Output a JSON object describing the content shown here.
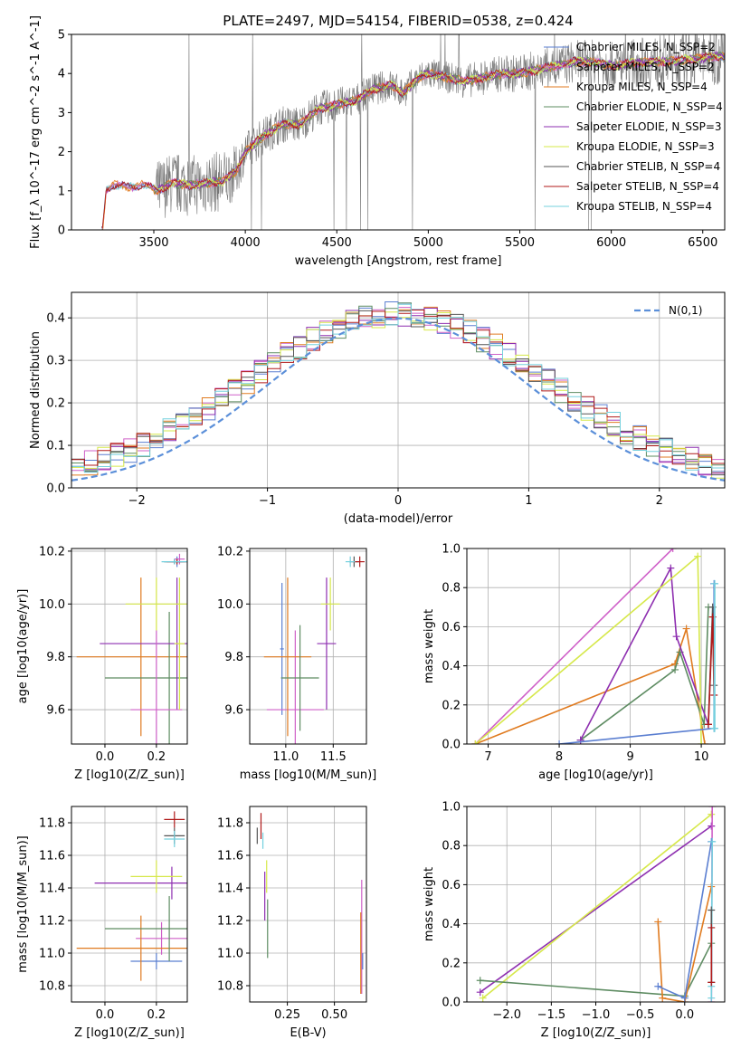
{
  "figure": {
    "title": "PLATE=2497, MJD=54154, FIBERID=0538, z=0.424"
  },
  "colors": {
    "chabrier_miles": "#5b7fd1",
    "salpeter_miles": "#cf60c8",
    "kroupa_miles": "#e07b20",
    "chabrier_elodie": "#5e8c62",
    "salpeter_elodie": "#8e2fb0",
    "kroupa_elodie": "#d6e84a",
    "chabrier_stelib": "#555555",
    "salpeter_stelib": "#b01a1a",
    "kroupa_stelib": "#74d0de",
    "data": "#777777",
    "normal": "#5b8fd9"
  },
  "chart_data": [
    {
      "id": "spectrum",
      "type": "line",
      "title": "PLATE=2497, MJD=54154, FIBERID=0538, z=0.424",
      "xlabel": "wavelength [Angstrom, rest frame]",
      "ylabel": "Flux [f_λ 10^-17 erg cm^-2 s^-1 A^-1]",
      "xlim": [
        3050,
        6620
      ],
      "ylim": [
        0,
        5
      ],
      "xticks": [
        "3500",
        "4000",
        "4500",
        "5000",
        "5500",
        "6000",
        "6500"
      ],
      "yticks": [
        "0",
        "1",
        "2",
        "3",
        "4",
        "5"
      ],
      "grid": false,
      "legend_position": "top-right",
      "legend": [
        {
          "label": "Chabrier MILES, N_SSP=2",
          "color_key": "chabrier_miles"
        },
        {
          "label": "Salpeter MILES, N_SSP=2",
          "color_key": "salpeter_miles"
        },
        {
          "label": "Kroupa MILES, N_SSP=4",
          "color_key": "kroupa_miles"
        },
        {
          "label": "Chabrier ELODIE, N_SSP=4",
          "color_key": "chabrier_elodie"
        },
        {
          "label": "Salpeter ELODIE, N_SSP=3",
          "color_key": "salpeter_elodie"
        },
        {
          "label": "Kroupa ELODIE, N_SSP=3",
          "color_key": "kroupa_elodie"
        },
        {
          "label": "Chabrier STELIB, N_SSP=4",
          "color_key": "chabrier_stelib"
        },
        {
          "label": "Salpeter STELIB, N_SSP=4",
          "color_key": "salpeter_stelib"
        },
        {
          "label": "Kroupa STELIB, N_SSP=4",
          "color_key": "kroupa_stelib"
        }
      ],
      "model_continuum": [
        [
          3220,
          0.0
        ],
        [
          3240,
          1.05
        ],
        [
          3280,
          1.15
        ],
        [
          3350,
          1.1
        ],
        [
          3450,
          1.15
        ],
        [
          3520,
          1.0
        ],
        [
          3600,
          1.2
        ],
        [
          3700,
          1.15
        ],
        [
          3800,
          1.2
        ],
        [
          3880,
          1.25
        ],
        [
          3950,
          1.5
        ],
        [
          4000,
          2.0
        ],
        [
          4100,
          2.4
        ],
        [
          4200,
          2.7
        ],
        [
          4300,
          2.7
        ],
        [
          4400,
          3.1
        ],
        [
          4500,
          3.2
        ],
        [
          4600,
          3.3
        ],
        [
          4700,
          3.6
        ],
        [
          4800,
          3.7
        ],
        [
          4860,
          3.5
        ],
        [
          4950,
          3.9
        ],
        [
          5000,
          4.0
        ],
        [
          5100,
          3.9
        ],
        [
          5200,
          3.8
        ],
        [
          5300,
          3.9
        ],
        [
          5400,
          4.0
        ],
        [
          5500,
          4.0
        ],
        [
          5600,
          4.1
        ],
        [
          5700,
          4.2
        ],
        [
          5800,
          4.3
        ],
        [
          5900,
          4.3
        ],
        [
          6000,
          4.2
        ],
        [
          6100,
          4.25
        ],
        [
          6200,
          4.3
        ],
        [
          6300,
          4.3
        ],
        [
          6400,
          4.35
        ],
        [
          6500,
          4.4
        ],
        [
          6600,
          4.45
        ]
      ],
      "data_noise_amplitude": [
        [
          3220,
          0.05
        ],
        [
          3500,
          0.05
        ],
        [
          3510,
          0.8
        ],
        [
          3900,
          0.8
        ],
        [
          4000,
          0.5
        ],
        [
          5000,
          0.4
        ],
        [
          5500,
          0.5
        ],
        [
          6000,
          0.6
        ],
        [
          6600,
          0.8
        ]
      ]
    },
    {
      "id": "residuals",
      "type": "histogram",
      "xlabel": "(data-model)/error",
      "ylabel": "Normed distribution",
      "xlim": [
        -2.5,
        2.5
      ],
      "ylim": [
        0,
        0.46
      ],
      "xticks": [
        "−2",
        "−1",
        "0",
        "1",
        "2"
      ],
      "yticks": [
        "0.0",
        "0.1",
        "0.2",
        "0.3",
        "0.4"
      ],
      "grid": true,
      "legend_position": "top-right",
      "legend": [
        {
          "label": "N(0,1)",
          "color_key": "normal"
        }
      ],
      "bin_width": 0.1
    },
    {
      "id": "age_vs_z",
      "type": "errorbar",
      "xlabel": "Z [log10(Z/Z_sun)]",
      "ylabel": "age [log10(age/yr)]",
      "xlim": [
        -0.13,
        0.32
      ],
      "ylim": [
        9.47,
        10.21
      ],
      "xticks": [
        "0.0",
        "0.2"
      ],
      "yticks": [
        "9.6",
        "9.8",
        "10.0",
        "10.2"
      ],
      "grid": true,
      "points": [
        {
          "key": "chabrier_miles",
          "x": 0.28,
          "xerr": 0.02,
          "y": 10.16,
          "yerr": 0.02
        },
        {
          "key": "salpeter_miles",
          "x": 0.29,
          "xerr": 0.02,
          "y": 10.17,
          "yerr": 0.02
        },
        {
          "key": "kroupa_miles",
          "x": 0.14,
          "xerr": 0.25,
          "y": 9.8,
          "yerr": 0.3
        },
        {
          "key": "chabrier_elodie",
          "x": 0.25,
          "xerr": 0.25,
          "y": 9.72,
          "yerr": 0.25
        },
        {
          "key": "salpeter_elodie",
          "x": 0.28,
          "xerr": 0.3,
          "y": 9.85,
          "yerr": 0.25
        },
        {
          "key": "kroupa_elodie",
          "x": 0.2,
          "xerr": 0.12,
          "y": 10.0,
          "yerr": 0.1
        },
        {
          "key": "chabrier_stelib",
          "x": 0.27,
          "xerr": 0.04,
          "y": 10.16,
          "yerr": 0.01
        },
        {
          "key": "salpeter_stelib",
          "x": 0.28,
          "xerr": 0.04,
          "y": 10.16,
          "yerr": 0.01
        },
        {
          "key": "kroupa_stelib",
          "x": 0.27,
          "xerr": 0.05,
          "y": 10.16,
          "yerr": 0.01
        },
        {
          "key": "salpeter_miles",
          "x": 0.2,
          "xerr": 0.1,
          "y": 9.6,
          "yerr": 0.3
        },
        {
          "key": "kroupa_elodie",
          "x": 0.29,
          "xerr": 0.02,
          "y": 9.85,
          "yerr": 0.25
        }
      ]
    },
    {
      "id": "age_vs_mass",
      "type": "errorbar",
      "xlabel": "mass [log10(M/M_sun)]",
      "ylabel": "",
      "xlim": [
        10.62,
        11.85
      ],
      "ylim": [
        9.47,
        10.21
      ],
      "xticks": [
        "11.0",
        "11.5"
      ],
      "yticks": [
        "9.6",
        "9.8",
        "10.0",
        "10.2"
      ],
      "grid": true,
      "points": [
        {
          "key": "chabrier_miles",
          "x": 10.96,
          "xerr": 0.02,
          "y": 9.83,
          "yerr": 0.25
        },
        {
          "key": "salpeter_miles",
          "x": 11.1,
          "xerr": 0.3,
          "y": 9.6,
          "yerr": 0.3
        },
        {
          "key": "kroupa_miles",
          "x": 11.02,
          "xerr": 0.25,
          "y": 9.8,
          "yerr": 0.3
        },
        {
          "key": "chabrier_elodie",
          "x": 11.15,
          "xerr": 0.2,
          "y": 9.72,
          "yerr": 0.2
        },
        {
          "key": "salpeter_elodie",
          "x": 11.43,
          "xerr": 0.1,
          "y": 9.85,
          "yerr": 0.25
        },
        {
          "key": "kroupa_elodie",
          "x": 11.47,
          "xerr": 0.1,
          "y": 10.0,
          "yerr": 0.1
        },
        {
          "key": "chabrier_stelib",
          "x": 11.72,
          "xerr": 0.05,
          "y": 10.16,
          "yerr": 0.02
        },
        {
          "key": "salpeter_stelib",
          "x": 11.78,
          "xerr": 0.05,
          "y": 10.16,
          "yerr": 0.02
        },
        {
          "key": "kroupa_stelib",
          "x": 11.68,
          "xerr": 0.05,
          "y": 10.16,
          "yerr": 0.02
        }
      ]
    },
    {
      "id": "weight_vs_age",
      "type": "line",
      "xlabel": "age [log10(age/yr)]",
      "ylabel": "mass weight",
      "xlim": [
        6.7,
        10.33
      ],
      "ylim": [
        0,
        1
      ],
      "xticks": [
        "7",
        "8",
        "9",
        "10"
      ],
      "yticks": [
        "0.0",
        "0.2",
        "0.4",
        "0.6",
        "0.8",
        "1.0"
      ],
      "grid": true,
      "series": [
        {
          "key": "salpeter_miles",
          "x": [
            6.82,
            9.6
          ],
          "y": [
            0.0,
            1.0
          ]
        },
        {
          "key": "kroupa_miles",
          "x": [
            6.82,
            9.63,
            9.79,
            10.05
          ],
          "y": [
            0.0,
            0.41,
            0.59,
            0.0
          ]
        },
        {
          "key": "chabrier_elodie",
          "x": [
            8.3,
            9.63,
            9.7,
            10.04,
            10.1
          ],
          "y": [
            0.02,
            0.38,
            0.47,
            0.1,
            0.7
          ]
        },
        {
          "key": "salpeter_elodie",
          "x": [
            8.3,
            9.57,
            9.65,
            10.1
          ],
          "y": [
            0.02,
            0.9,
            0.55,
            0.1
          ]
        },
        {
          "key": "kroupa_elodie",
          "x": [
            6.82,
            9.95,
            10.0
          ],
          "y": [
            0.0,
            0.96,
            0.0
          ]
        },
        {
          "key": "chabrier_miles",
          "x": [
            8.0,
            10.18,
            10.18
          ],
          "y": [
            0.0,
            0.08,
            0.82
          ]
        },
        {
          "key": "chabrier_stelib",
          "x": [
            10.1,
            10.16,
            10.18
          ],
          "y": [
            0.1,
            0.7,
            0.3
          ]
        },
        {
          "key": "salpeter_stelib",
          "x": [
            10.1,
            10.16,
            10.18
          ],
          "y": [
            0.1,
            0.65,
            0.25
          ]
        },
        {
          "key": "kroupa_stelib",
          "x": [
            10.18,
            10.19,
            10.19
          ],
          "y": [
            0.08,
            0.82,
            0.08
          ]
        }
      ]
    },
    {
      "id": "mass_vs_z",
      "type": "errorbar",
      "xlabel": "Z [log10(Z/Z_sun)]",
      "ylabel": "mass [log10(M/M_sun)]",
      "xlim": [
        -0.13,
        0.32
      ],
      "ylim": [
        10.7,
        11.9
      ],
      "xticks": [
        "0.0",
        "0.2"
      ],
      "yticks": [
        "10.8",
        "11.0",
        "11.2",
        "11.4",
        "11.6",
        "11.8"
      ],
      "grid": true,
      "points": [
        {
          "key": "chabrier_miles",
          "x": 0.2,
          "xerr": 0.1,
          "y": 10.95,
          "yerr": 0.05
        },
        {
          "key": "salpeter_miles",
          "x": 0.22,
          "xerr": 0.1,
          "y": 11.09,
          "yerr": 0.1
        },
        {
          "key": "kroupa_miles",
          "x": 0.14,
          "xerr": 0.25,
          "y": 11.03,
          "yerr": 0.2
        },
        {
          "key": "chabrier_elodie",
          "x": 0.25,
          "xerr": 0.25,
          "y": 11.15,
          "yerr": 0.2
        },
        {
          "key": "salpeter_elodie",
          "x": 0.26,
          "xerr": 0.3,
          "y": 11.43,
          "yerr": 0.1
        },
        {
          "key": "kroupa_elodie",
          "x": 0.2,
          "xerr": 0.1,
          "y": 11.47,
          "yerr": 0.1
        },
        {
          "key": "chabrier_stelib",
          "x": 0.27,
          "xerr": 0.04,
          "y": 11.72,
          "yerr": 0.05
        },
        {
          "key": "salpeter_stelib",
          "x": 0.27,
          "xerr": 0.04,
          "y": 11.82,
          "yerr": 0.05
        },
        {
          "key": "kroupa_stelib",
          "x": 0.27,
          "xerr": 0.04,
          "y": 11.7,
          "yerr": 0.05
        }
      ]
    },
    {
      "id": "mass_vs_ebv",
      "type": "errorbar",
      "xlabel": "E(B-V)",
      "ylabel": "",
      "xlim": [
        0.05,
        0.67
      ],
      "ylim": [
        10.7,
        11.9
      ],
      "xticks": [
        "0.25",
        "0.50"
      ],
      "yticks": [
        "10.8",
        "11.0",
        "11.2",
        "11.4",
        "11.6",
        "11.8"
      ],
      "grid": true,
      "points": [
        {
          "key": "chabrier_stelib",
          "x": 0.09,
          "xerr": 0.0,
          "y": 11.72,
          "yerr": 0.05
        },
        {
          "key": "salpeter_stelib",
          "x": 0.11,
          "xerr": 0.0,
          "y": 11.78,
          "yerr": 0.08
        },
        {
          "key": "kroupa_stelib",
          "x": 0.12,
          "xerr": 0.0,
          "y": 11.69,
          "yerr": 0.05
        },
        {
          "key": "salpeter_elodie",
          "x": 0.13,
          "xerr": 0.0,
          "y": 11.35,
          "yerr": 0.15
        },
        {
          "key": "kroupa_elodie",
          "x": 0.14,
          "xerr": 0.0,
          "y": 11.47,
          "yerr": 0.1
        },
        {
          "key": "chabrier_elodie",
          "x": 0.145,
          "xerr": 0.0,
          "y": 11.15,
          "yerr": 0.18
        },
        {
          "key": "salpeter_miles",
          "x": 0.645,
          "xerr": 0.0,
          "y": 11.1,
          "yerr": 0.35
        },
        {
          "key": "kroupa_miles",
          "x": 0.64,
          "xerr": 0.0,
          "y": 11.0,
          "yerr": 0.25
        },
        {
          "key": "chabrier_miles",
          "x": 0.65,
          "xerr": 0.0,
          "y": 10.95,
          "yerr": 0.05
        }
      ]
    },
    {
      "id": "weight_vs_z",
      "type": "line",
      "xlabel": "Z [log10(Z/Z_sun)]",
      "ylabel": "mass weight",
      "xlim": [
        -2.45,
        0.45
      ],
      "ylim": [
        0,
        1
      ],
      "xticks": [
        "−2.0",
        "−1.5",
        "−1.0",
        "−0.5",
        "0.0"
      ],
      "yticks": [
        "0.0",
        "0.2",
        "0.4",
        "0.6",
        "0.8",
        "1.0"
      ],
      "grid": true,
      "series": [
        {
          "key": "salpeter_elodie",
          "x": [
            -2.3,
            0.3
          ],
          "y": [
            0.05,
            0.9
          ]
        },
        {
          "key": "kroupa_elodie",
          "x": [
            -2.27,
            0.3
          ],
          "y": [
            0.02,
            0.96
          ]
        },
        {
          "key": "chabrier_elodie",
          "x": [
            -2.3,
            0.0,
            0.3
          ],
          "y": [
            0.11,
            0.03,
            0.3
          ]
        },
        {
          "key": "kroupa_miles",
          "x": [
            -0.3,
            -0.25,
            0.0,
            0.3
          ],
          "y": [
            0.41,
            0.02,
            0.0,
            0.59
          ]
        },
        {
          "key": "salpeter_miles",
          "x": [
            0.3,
            0.31
          ],
          "y": [
            0.0,
            1.0
          ]
        },
        {
          "key": "chabrier_miles",
          "x": [
            -0.3,
            0.0,
            0.3
          ],
          "y": [
            0.08,
            0.02,
            0.82
          ]
        },
        {
          "key": "kroupa_stelib",
          "x": [
            0.3,
            0.31,
            0.3
          ],
          "y": [
            0.08,
            0.82,
            0.02
          ]
        },
        {
          "key": "chabrier_stelib",
          "x": [
            0.3,
            0.3
          ],
          "y": [
            0.1,
            0.47
          ]
        },
        {
          "key": "salpeter_stelib",
          "x": [
            0.3,
            0.3
          ],
          "y": [
            0.1,
            0.38
          ]
        }
      ]
    }
  ]
}
